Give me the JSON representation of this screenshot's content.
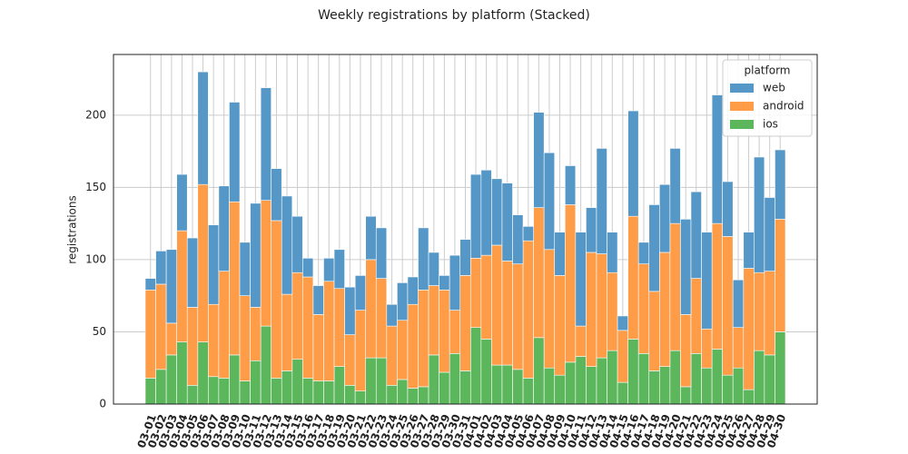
{
  "chart_data": {
    "type": "stacked-bar",
    "title": "Weekly registrations by platform (Stacked)",
    "ylabel": "registrations",
    "legend_title": "platform",
    "legend": "upper right",
    "grid": true,
    "categories": [
      "03-01",
      "03-02",
      "03-03",
      "03-04",
      "03-05",
      "03-06",
      "03-07",
      "03-08",
      "03-09",
      "03-10",
      "03-11",
      "03-12",
      "03-13",
      "03-14",
      "03-15",
      "03-16",
      "03-17",
      "03-18",
      "03-19",
      "03-20",
      "03-21",
      "03-22",
      "03-23",
      "03-24",
      "03-25",
      "03-26",
      "03-27",
      "03-28",
      "03-29",
      "03-30",
      "03-31",
      "04-01",
      "04-02",
      "04-03",
      "04-04",
      "04-05",
      "04-06",
      "04-07",
      "04-08",
      "04-09",
      "04-10",
      "04-11",
      "04-12",
      "04-13",
      "04-14",
      "04-15",
      "04-16",
      "04-17",
      "04-18",
      "04-19",
      "04-20",
      "04-21",
      "04-22",
      "04-23",
      "04-24",
      "04-25",
      "04-26",
      "04-27",
      "04-28",
      "04-29",
      "04-30"
    ],
    "series": [
      {
        "name": "web",
        "color": "#5597c6",
        "values": [
          8,
          23,
          51,
          39,
          48,
          78,
          55,
          59,
          69,
          37,
          72,
          78,
          36,
          68,
          39,
          13,
          20,
          16,
          27,
          33,
          24,
          30,
          35,
          15,
          26,
          19,
          43,
          23,
          10,
          38,
          25,
          58,
          59,
          46,
          54,
          34,
          10,
          66,
          67,
          30,
          27,
          65,
          31,
          73,
          28,
          10,
          73,
          15,
          60,
          47,
          52,
          66,
          60,
          67,
          89,
          38,
          33,
          25,
          80,
          51,
          48
        ]
      },
      {
        "name": "android",
        "color": "#fe9c48",
        "values": [
          61,
          59,
          22,
          77,
          54,
          109,
          50,
          74,
          106,
          59,
          37,
          87,
          109,
          53,
          60,
          70,
          46,
          69,
          54,
          35,
          56,
          68,
          55,
          41,
          41,
          58,
          67,
          48,
          57,
          30,
          66,
          48,
          58,
          83,
          72,
          73,
          95,
          90,
          82,
          69,
          109,
          21,
          79,
          72,
          54,
          36,
          85,
          62,
          55,
          79,
          88,
          50,
          52,
          27,
          87,
          96,
          28,
          84,
          54,
          58,
          78
        ]
      },
      {
        "name": "ios",
        "color": "#5cb75c",
        "values": [
          18,
          24,
          34,
          43,
          13,
          43,
          19,
          18,
          34,
          16,
          30,
          54,
          18,
          23,
          31,
          18,
          16,
          16,
          26,
          13,
          9,
          32,
          32,
          13,
          17,
          11,
          12,
          34,
          22,
          35,
          23,
          53,
          45,
          27,
          27,
          24,
          18,
          46,
          25,
          20,
          29,
          33,
          26,
          32,
          37,
          15,
          45,
          35,
          23,
          26,
          37,
          12,
          35,
          25,
          38,
          20,
          25,
          10,
          37,
          34,
          50
        ]
      }
    ],
    "ylim": [
      0,
      242
    ],
    "yticks": [
      0,
      50,
      100,
      150,
      200
    ]
  }
}
